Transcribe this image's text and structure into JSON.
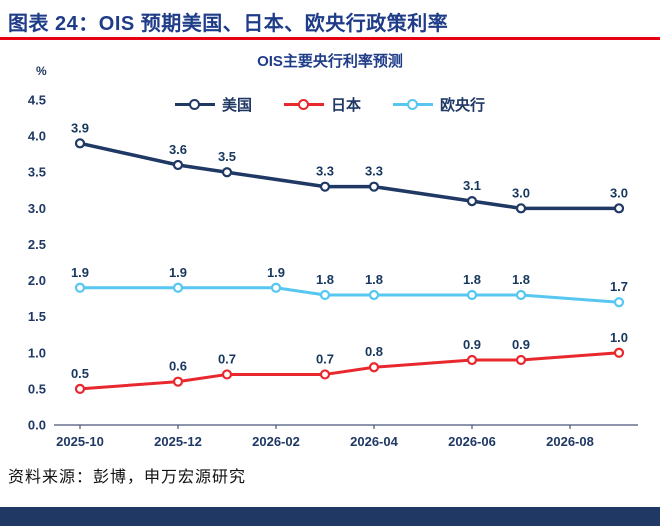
{
  "page": {
    "header_title": "图表 24：OIS 预期美国、日本、欧央行政策利率",
    "source_text": "资料来源：彭博，申万宏源研究"
  },
  "chart_data": {
    "type": "line",
    "title": "OIS主要央行利率预测",
    "ylabel": "%",
    "ylim": [
      0.0,
      4.5
    ],
    "ytick_step": 0.5,
    "grid": false,
    "legend_position": "top-center",
    "x_axis_start": "2025-10",
    "x_tick_labels": [
      "2025-10",
      "2025-12",
      "2026-02",
      "2026-04",
      "2026-06",
      "2026-08"
    ],
    "x_tick_months": [
      0,
      2,
      4,
      6,
      8,
      10
    ],
    "series": [
      {
        "id": "us",
        "name": "美国",
        "color": "#1f3864",
        "x_months": [
          0,
          2,
          3,
          5,
          6,
          8,
          9,
          11
        ],
        "values": [
          3.9,
          3.6,
          3.5,
          3.3,
          3.3,
          3.1,
          3.0,
          3.0
        ]
      },
      {
        "id": "japan",
        "name": "日本",
        "color": "#e8282d",
        "x_months": [
          0,
          2,
          3,
          5,
          6,
          8,
          9,
          11
        ],
        "values": [
          0.5,
          0.6,
          0.7,
          0.7,
          0.8,
          0.9,
          0.9,
          1.0
        ]
      },
      {
        "id": "ecb",
        "name": "欧央行",
        "color": "#57c7f2",
        "x_months": [
          0,
          2,
          4,
          5,
          6,
          8,
          9,
          11
        ],
        "values": [
          1.9,
          1.9,
          1.9,
          1.8,
          1.8,
          1.8,
          1.8,
          1.7
        ]
      }
    ]
  },
  "colors": {
    "header_blue": "#1f3c88",
    "navy": "#1f3864",
    "accent_red": "#e60012",
    "japan_red": "#e8282d",
    "ecb_cyan": "#57c7f2",
    "bottom_bar": "#1f3864"
  }
}
